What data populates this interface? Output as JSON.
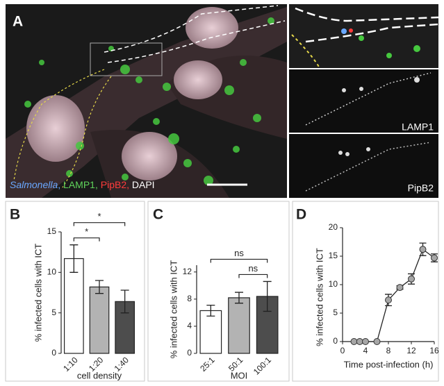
{
  "panel_labels": [
    "A",
    "B",
    "C",
    "D"
  ],
  "image": {
    "legend": [
      {
        "text": "Salmonella",
        "color": "#6aa8ff",
        "italic": true
      },
      {
        "text": "LAMP1",
        "color": "#5fd35a"
      },
      {
        "text": "PipB2",
        "color": "#ff3b3b"
      },
      {
        "text": "DAPI",
        "color": "#ffffff"
      }
    ],
    "legend_separator": ", ",
    "inset_labels": [
      "LAMP1",
      "PipB2"
    ]
  },
  "chart_data": [
    {
      "type": "bar",
      "categories": [
        "1:10",
        "1:20",
        "1:40"
      ],
      "values": [
        11.7,
        8.2,
        6.4
      ],
      "errors": [
        1.7,
        0.8,
        1.4
      ],
      "colors": [
        "#ffffff",
        "#b3b3b3",
        "#4d4d4d"
      ],
      "ylim": [
        0,
        15
      ],
      "yticks": [
        0,
        5,
        10,
        15
      ],
      "ylabel": "% infected cells with ICT",
      "xlabel": "cell density",
      "annotations": [
        {
          "label": "*",
          "between": [
            "1:10",
            "1:20"
          ]
        },
        {
          "label": "*",
          "between": [
            "1:10",
            "1:40"
          ]
        }
      ]
    },
    {
      "type": "bar",
      "categories": [
        "25:1",
        "50:1",
        "100:1"
      ],
      "values": [
        6.3,
        8.2,
        8.4
      ],
      "errors": [
        0.8,
        0.8,
        2.2
      ],
      "colors": [
        "#ffffff",
        "#b3b3b3",
        "#4d4d4d"
      ],
      "ylim": [
        0,
        13
      ],
      "yticks": [
        0,
        4,
        8,
        12
      ],
      "ylabel": "% infected cells with ICT",
      "xlabel": "MOI",
      "annotations": [
        {
          "label": "ns",
          "between": [
            "25:1",
            "100:1"
          ]
        },
        {
          "label": "ns",
          "between": [
            "50:1",
            "100:1"
          ]
        }
      ]
    },
    {
      "type": "line",
      "x": [
        2,
        3,
        4,
        6,
        8,
        10,
        12,
        14,
        16
      ],
      "values": [
        0,
        0,
        0,
        0,
        7.3,
        9.5,
        11,
        16.2,
        14.7
      ],
      "errors": [
        0,
        0,
        0,
        0,
        1,
        0.3,
        0.9,
        1.1,
        0.7
      ],
      "color": "#a6a6a6",
      "xlim": [
        0,
        16
      ],
      "xticks": [
        0,
        4,
        8,
        12,
        16
      ],
      "ylim": [
        0,
        20
      ],
      "yticks": [
        0,
        5,
        10,
        15,
        20
      ],
      "ylabel": "% infected cells with ICT",
      "xlabel": "Time post-infection (h)"
    }
  ]
}
